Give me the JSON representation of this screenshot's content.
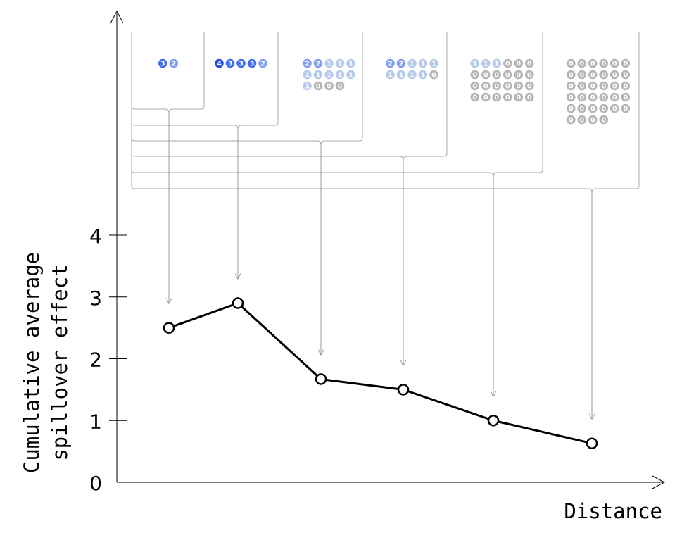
{
  "chart_data": {
    "type": "line",
    "title": "",
    "xlabel": "Distance",
    "ylabel_lines": [
      "Cumulative average",
      "spillover effect"
    ],
    "ylim": [
      0,
      4
    ],
    "yticks": [
      {
        "value": 0,
        "label": "0"
      },
      {
        "value": 1,
        "label": "1"
      },
      {
        "value": 2,
        "label": "2"
      },
      {
        "value": 3,
        "label": "3"
      },
      {
        "value": 4,
        "label": "4"
      }
    ],
    "grid": false,
    "legend": "none",
    "line_color": "#000000",
    "dot_colors": {
      "4": "#1f4fe0",
      "3": "#3f6fee",
      "2": "#7f9ef2",
      "1": "#b7cae9",
      "0": "#b5b5b5"
    },
    "series": [
      {
        "values": [
          2.5,
          2.9,
          1.67,
          1.5,
          1.0,
          0.63
        ],
        "groups": [
          [
            3,
            2
          ],
          [
            4,
            3,
            3,
            3,
            2
          ],
          [
            2,
            2,
            1,
            1,
            1,
            1,
            1,
            1,
            1,
            1,
            1,
            0,
            0,
            0
          ],
          [
            2,
            2,
            1,
            1,
            1,
            1,
            1,
            1,
            1,
            0
          ],
          [
            1,
            1,
            1,
            0,
            0,
            0,
            0,
            0,
            0,
            0,
            0,
            0,
            0,
            0,
            0,
            0,
            0,
            0,
            0,
            0,
            0,
            0,
            0,
            0
          ],
          [
            0,
            0,
            0,
            0,
            0,
            0,
            0,
            0,
            0,
            0,
            0,
            0,
            0,
            0,
            0,
            0,
            0,
            0,
            0,
            0,
            0,
            0,
            0,
            0,
            0,
            0,
            0,
            0,
            0,
            0,
            0,
            0,
            0,
            0
          ]
        ]
      }
    ]
  }
}
